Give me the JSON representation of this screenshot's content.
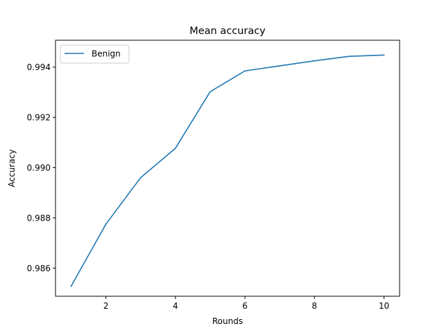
{
  "chart_data": {
    "type": "line",
    "title": "Mean accuracy",
    "xlabel": "Rounds",
    "ylabel": "Accuracy",
    "xlim": [
      0.55,
      10.45
    ],
    "ylim": [
      0.98488,
      0.99507
    ],
    "xticks": [
      2,
      4,
      6,
      8,
      10
    ],
    "xtick_labels": [
      "2",
      "4",
      "6",
      "8",
      "10"
    ],
    "yticks": [
      0.986,
      0.988,
      0.99,
      0.992,
      0.994
    ],
    "ytick_labels": [
      "0.986",
      "0.988",
      "0.990",
      "0.992",
      "0.994"
    ],
    "grid": false,
    "legend_position": "top-left",
    "series": [
      {
        "name": "Benign",
        "color": "#1f77b4",
        "x": [
          1,
          2,
          3,
          4,
          5,
          6,
          7,
          8,
          9,
          10
        ],
        "y": [
          0.98528,
          0.98775,
          0.9896,
          0.99077,
          0.99302,
          0.99385,
          0.99405,
          0.99425,
          0.99443,
          0.99448
        ]
      }
    ]
  }
}
